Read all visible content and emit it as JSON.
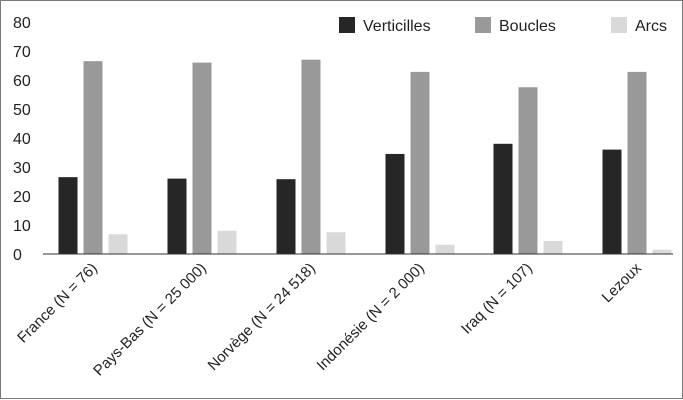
{
  "chart_data": {
    "type": "bar",
    "title": "",
    "xlabel": "",
    "ylabel": "",
    "ylim": [
      0,
      80
    ],
    "yticks": [
      0,
      10,
      20,
      30,
      40,
      50,
      60,
      70,
      80
    ],
    "grid": false,
    "legend_position": "top-right",
    "categories": [
      "France (N = 76)",
      "Pays-Bas (N = 25 000)",
      "Norvège (N = 24 518)",
      "Indonésie (N = 2 000)",
      "Iraq (N = 107)",
      "Lezoux"
    ],
    "series": [
      {
        "name": "Verticilles",
        "color": "#262626",
        "values": [
          26.5,
          26,
          25.8,
          34.5,
          38,
          36
        ]
      },
      {
        "name": "Boucles",
        "color": "#999999",
        "values": [
          66.5,
          66,
          67,
          62.8,
          57.5,
          62.8
        ]
      },
      {
        "name": "Arcs",
        "color": "#d9d9d9",
        "values": [
          6.8,
          8,
          7.5,
          3.2,
          4.5,
          1.5
        ]
      }
    ]
  }
}
